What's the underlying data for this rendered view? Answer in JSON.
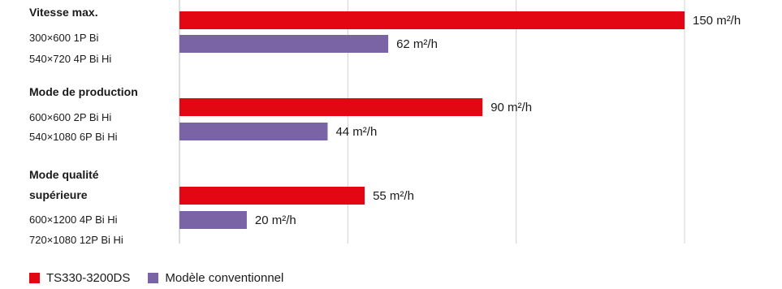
{
  "chart_data": {
    "type": "bar",
    "orientation": "horizontal",
    "xlim": [
      0,
      160
    ],
    "grid": true,
    "legend_placement": "bottom-left",
    "unit_suffix": " m²/h",
    "groups": [
      {
        "title": "Vitesse max.",
        "labels": [
          "300×600 1P Bi",
          "540×720 4P Bi Hi"
        ],
        "values": [
          150,
          62
        ]
      },
      {
        "title": "Mode de production",
        "labels": [
          "600×600 2P Bi Hi",
          "540×1080 6P Bi Hi"
        ],
        "values": [
          90,
          44
        ]
      },
      {
        "title": "Mode qualité supérieure",
        "title_lines": [
          "Mode qualité",
          "supérieure"
        ],
        "labels": [
          "600×1200 4P Bi Hi",
          "720×1080 12P Bi Hi"
        ],
        "values": [
          55,
          20
        ]
      }
    ],
    "series": [
      {
        "name": "TS330-3200DS",
        "color": "#e30613"
      },
      {
        "name": "Modèle conventionnel",
        "color": "#7b64a6"
      }
    ]
  }
}
